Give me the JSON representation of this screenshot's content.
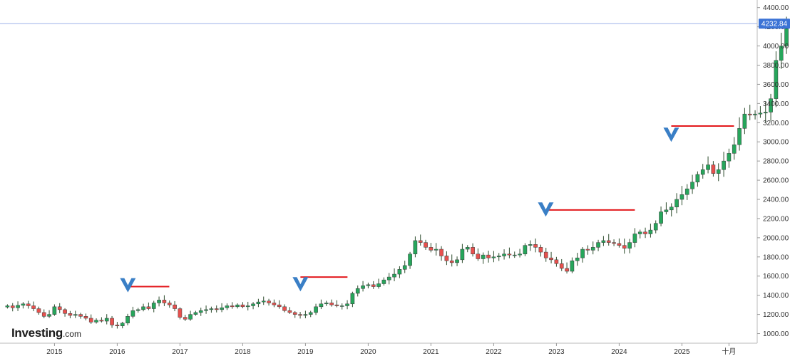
{
  "brand": {
    "name": "Investing",
    "suffix": ".com"
  },
  "colors": {
    "up": "#26a65b",
    "down": "#e8504d",
    "wick": "#2e4d2e",
    "annotation_line": "#e3181c",
    "arrow": "#3a7fc6",
    "price_badge": "#3b73d6"
  },
  "chart_data": {
    "type": "candlestick",
    "title": "",
    "xlabel": "",
    "ylabel": "",
    "ylim": [
      900,
      4420
    ],
    "y_ticks": [
      "1000.00",
      "1200.00",
      "1400.00",
      "1600.00",
      "1800.00",
      "2000.00",
      "2200.00",
      "2400.00",
      "2600.00",
      "2800.00",
      "3000.00",
      "3200.00",
      "3400.00",
      "3600.00",
      "3800.00",
      "4000.00",
      "4200.00",
      "4400.00"
    ],
    "x_ticks": [
      {
        "label": "2015",
        "t": 2015.0
      },
      {
        "label": "2016",
        "t": 2016.0
      },
      {
        "label": "2017",
        "t": 2017.0
      },
      {
        "label": "2018",
        "t": 2018.0
      },
      {
        "label": "2019",
        "t": 2019.0
      },
      {
        "label": "2020",
        "t": 2020.0
      },
      {
        "label": "2021",
        "t": 2021.0
      },
      {
        "label": "2022",
        "t": 2022.0
      },
      {
        "label": "2023",
        "t": 2023.0
      },
      {
        "label": "2024",
        "t": 2024.0
      },
      {
        "label": "2025",
        "t": 2025.0
      },
      {
        "label": "十月",
        "t": 2025.75
      }
    ],
    "x_range": [
      2014.2,
      2026.2
    ],
    "last_price": 4232.84,
    "last_price_label": "4232.84",
    "annotations": {
      "resistance_lines": [
        {
          "t_start": 2016.17,
          "t_end": 2016.83,
          "y": 1490
        },
        {
          "t_start": 2018.92,
          "t_end": 2019.67,
          "y": 1590
        },
        {
          "t_start": 2022.83,
          "t_end": 2024.25,
          "y": 2290
        },
        {
          "t_start": 2024.83,
          "t_end": 2025.83,
          "y": 3165
        }
      ],
      "arrows": [
        {
          "t": 2016.17,
          "y": 1430
        },
        {
          "t": 2018.92,
          "y": 1440
        },
        {
          "t": 2022.83,
          "y": 2220
        },
        {
          "t": 2024.83,
          "y": 3000
        }
      ]
    },
    "candles_monthly_close": [
      1290,
      1270,
      1295,
      1310,
      1290,
      1260,
      1220,
      1180,
      1200,
      1280,
      1250,
      1210,
      1190,
      1200,
      1180,
      1160,
      1120,
      1140,
      1130,
      1160,
      1090,
      1080,
      1110,
      1180,
      1240,
      1250,
      1280,
      1260,
      1320,
      1350,
      1320,
      1300,
      1260,
      1170,
      1150,
      1200,
      1220,
      1240,
      1250,
      1260,
      1250,
      1270,
      1290,
      1280,
      1300,
      1280,
      1290,
      1310,
      1330,
      1340,
      1320,
      1300,
      1280,
      1240,
      1220,
      1200,
      1190,
      1200,
      1220,
      1280,
      1310,
      1320,
      1300,
      1290,
      1290,
      1310,
      1420,
      1470,
      1500,
      1510,
      1490,
      1520,
      1560,
      1590,
      1620,
      1670,
      1710,
      1830,
      1970,
      1950,
      1900,
      1870,
      1880,
      1810,
      1760,
      1740,
      1770,
      1880,
      1900,
      1830,
      1780,
      1820,
      1790,
      1800,
      1810,
      1830,
      1820,
      1820,
      1830,
      1920,
      1930,
      1900,
      1850,
      1790,
      1770,
      1730,
      1680,
      1650,
      1760,
      1790,
      1880,
      1870,
      1900,
      1950,
      1970,
      1950,
      1940,
      1920,
      1890,
      1950,
      2040,
      2060,
      2040,
      2080,
      2150,
      2270,
      2290,
      2320,
      2400,
      2450,
      2510,
      2580,
      2660,
      2710,
      2760,
      2670,
      2710,
      2800,
      2880,
      2970,
      3140,
      3290,
      3280,
      3290,
      3300,
      3310,
      3450,
      3850,
      4000,
      4232.84
    ],
    "start_t": 2014.25
  }
}
